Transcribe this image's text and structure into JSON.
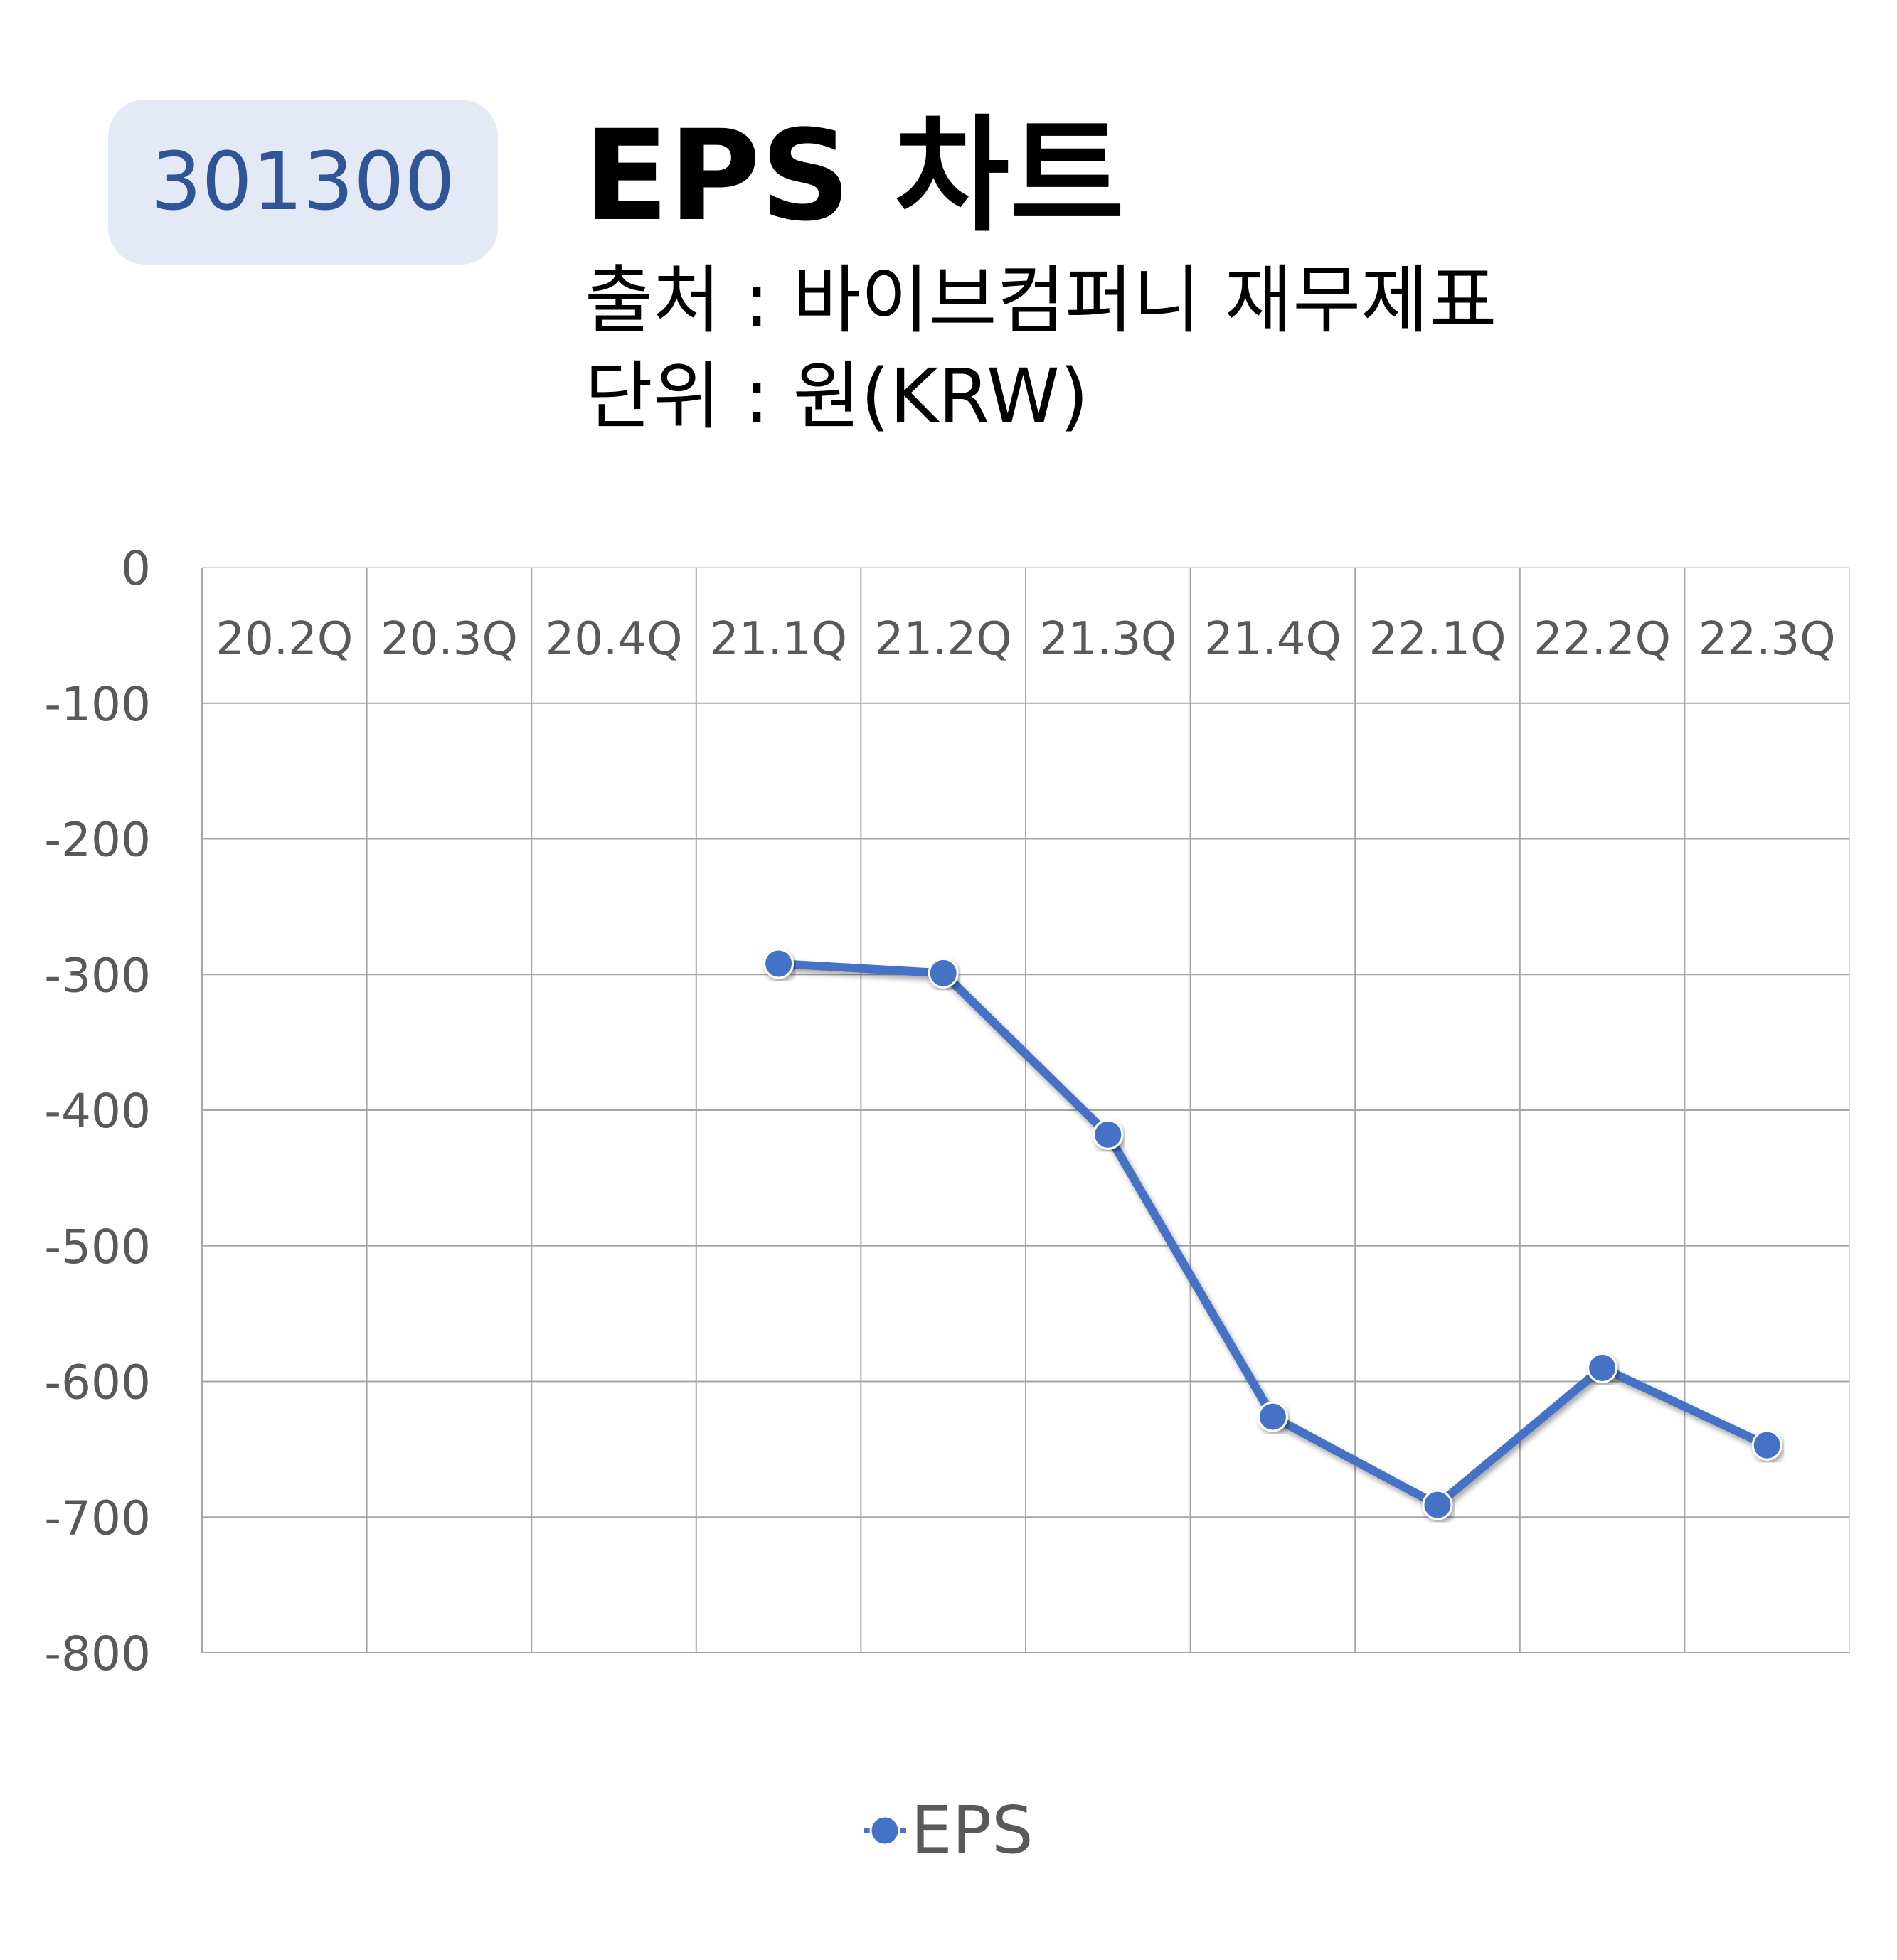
{
  "header": {
    "code": "301300",
    "title": "EPS 차트",
    "source_line": "출처 : 바이브컴퍼니 재무제표",
    "unit_line": "단위 : 원(KRW)"
  },
  "colors": {
    "series": "#4472c4",
    "badge_bg": "#e4eaf5",
    "badge_text": "#2f5597",
    "grid": "#a6a6a6",
    "axis_text": "#595959"
  },
  "chart_data": {
    "type": "line",
    "categories": [
      "20.2Q",
      "20.3Q",
      "20.4Q",
      "21.1Q",
      "21.2Q",
      "21.3Q",
      "21.4Q",
      "22.1Q",
      "22.2Q",
      "22.3Q"
    ],
    "series": [
      {
        "name": "EPS",
        "values": [
          null,
          null,
          null,
          -292,
          -299,
          -418,
          -626,
          -691,
          -590,
          -647
        ]
      }
    ],
    "ylim": [
      -800,
      0
    ],
    "yticks": [
      0,
      -100,
      -200,
      -300,
      -400,
      -500,
      -600,
      -700,
      -800
    ],
    "category_labels_position": "top",
    "grid": true,
    "legend_position": "bottom"
  }
}
